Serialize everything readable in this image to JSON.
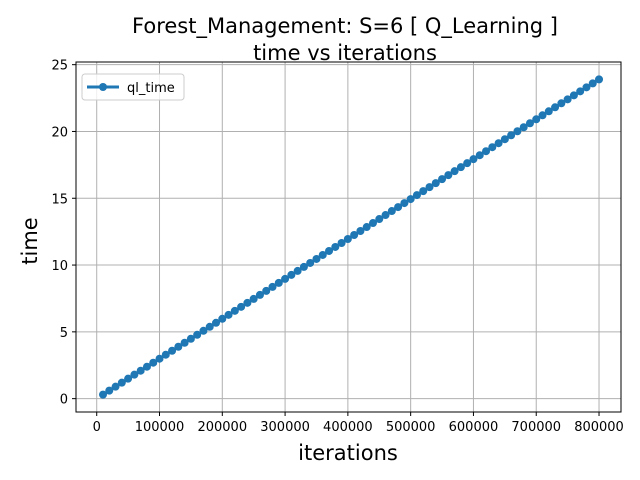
{
  "chart_data": {
    "type": "line",
    "title": "Forest_Management: S=6 [ Q_Learning ]",
    "subtitle": "time vs iterations",
    "xlabel": "iterations",
    "ylabel": "time",
    "xlim": [
      -33000,
      835000
    ],
    "ylim": [
      -1.0,
      25.2
    ],
    "xticks": [
      0,
      100000,
      200000,
      300000,
      400000,
      500000,
      600000,
      700000,
      800000
    ],
    "xtick_labels": [
      "0",
      "100000",
      "200000",
      "300000",
      "400000",
      "500000",
      "600000",
      "700000",
      "800000"
    ],
    "yticks": [
      0,
      5,
      10,
      15,
      20,
      25
    ],
    "ytick_labels": [
      "0",
      "5",
      "10",
      "15",
      "20",
      "25"
    ],
    "grid": true,
    "legend_position": "top-left",
    "series": [
      {
        "name": "ql_time",
        "color": "#1f77b4",
        "marker": "circle",
        "x_start": 10000,
        "x_end": 800000,
        "x_step": 10000,
        "y_start": 0.3,
        "y_end": 23.9
      }
    ]
  }
}
